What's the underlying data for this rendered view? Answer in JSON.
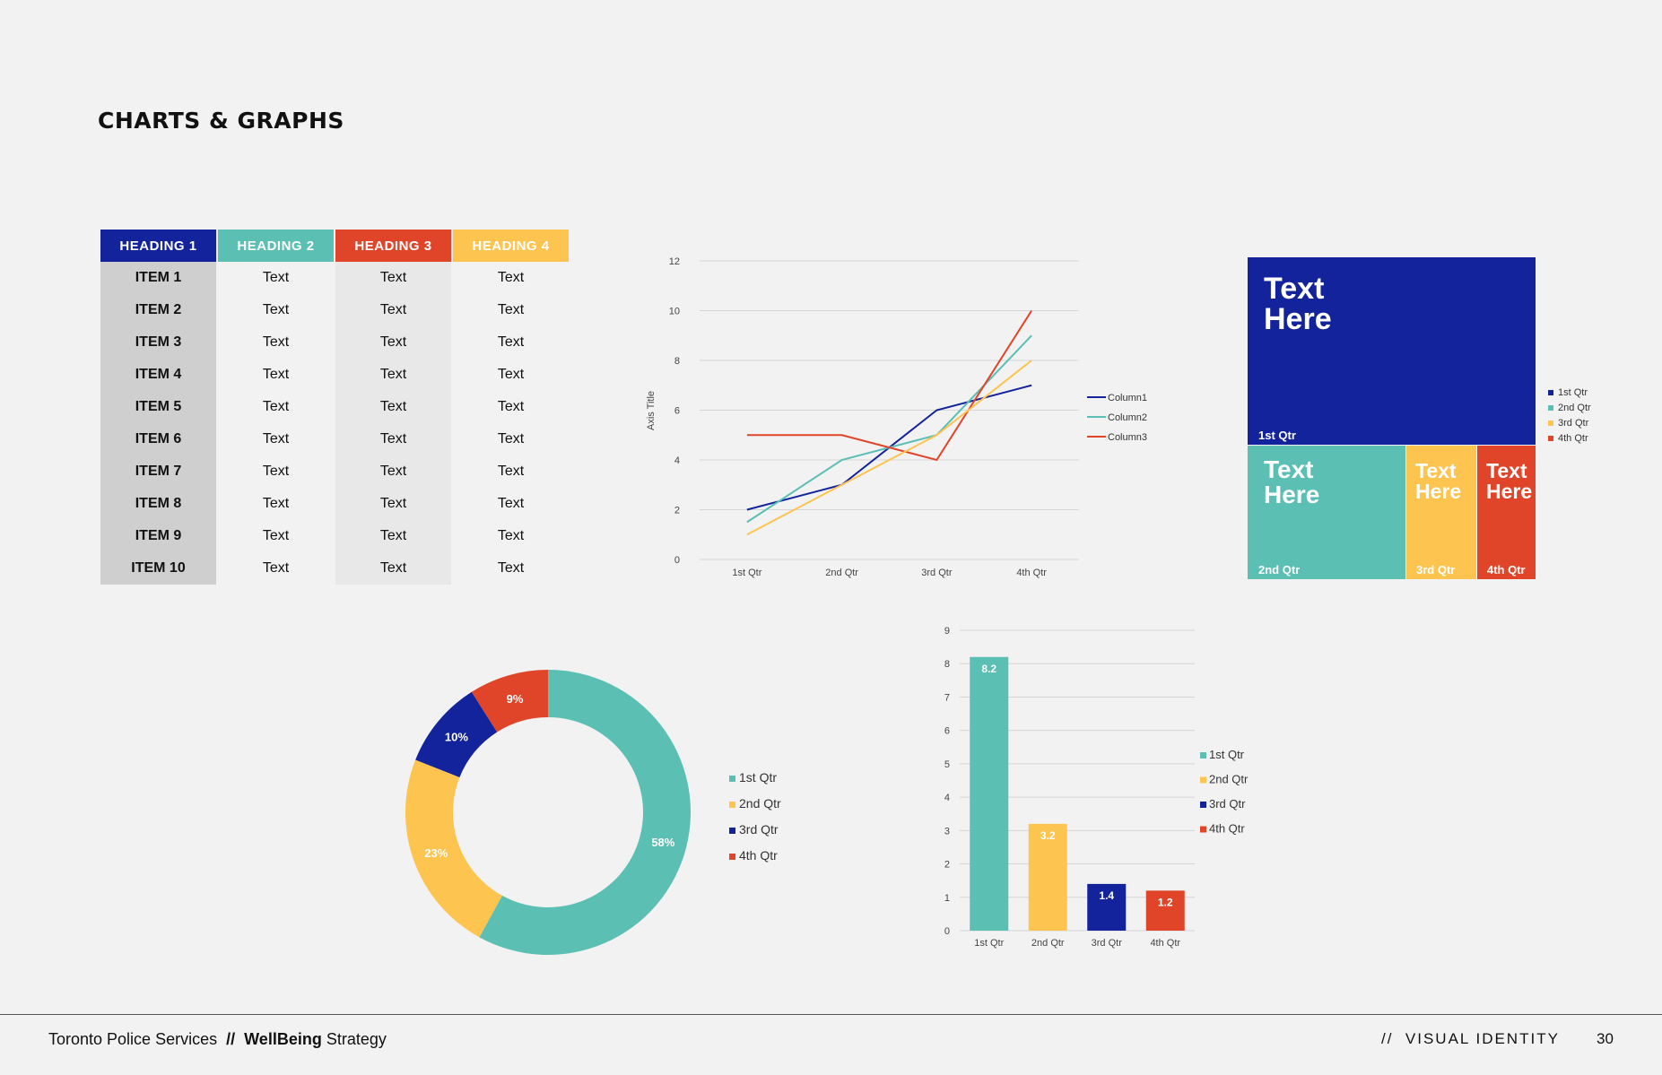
{
  "page": {
    "title": "CHARTS & GRAPHS",
    "footer": {
      "org": "Toronto Police Services",
      "separator": "//",
      "project_bold": "WellBeing",
      "project_rest": "Strategy",
      "section_sep": "//",
      "section": "VISUAL IDENTITY",
      "page_number": "30"
    }
  },
  "colors": {
    "navy": "#13239b",
    "teal": "#5bbfb3",
    "red": "#e0452a",
    "yellow": "#fdc44f"
  },
  "table": {
    "headers": [
      "HEADING 1",
      "HEADING 2",
      "HEADING 3",
      "HEADING 4"
    ],
    "header_colors": [
      "#13239b",
      "#5bbfb3",
      "#e0452a",
      "#fdc44f"
    ],
    "rows": [
      [
        "ITEM 1",
        "Text",
        "Text",
        "Text"
      ],
      [
        "ITEM 2",
        "Text",
        "Text",
        "Text"
      ],
      [
        "ITEM 3",
        "Text",
        "Text",
        "Text"
      ],
      [
        "ITEM 4",
        "Text",
        "Text",
        "Text"
      ],
      [
        "ITEM 5",
        "Text",
        "Text",
        "Text"
      ],
      [
        "ITEM 6",
        "Text",
        "Text",
        "Text"
      ],
      [
        "ITEM 7",
        "Text",
        "Text",
        "Text"
      ],
      [
        "ITEM 8",
        "Text",
        "Text",
        "Text"
      ],
      [
        "ITEM 9",
        "Text",
        "Text",
        "Text"
      ],
      [
        "ITEM 10",
        "Text",
        "Text",
        "Text"
      ]
    ]
  },
  "chart_data": [
    {
      "type": "line",
      "categories": [
        "1st Qtr",
        "2nd Qtr",
        "3rd Qtr",
        "4th Qtr"
      ],
      "series": [
        {
          "name": "Column1",
          "values": [
            2,
            3,
            6,
            7
          ],
          "color": "#13239b"
        },
        {
          "name": "Column2",
          "values": [
            1.5,
            4,
            5,
            9
          ],
          "color": "#5bbfb3"
        },
        {
          "name": "Column3",
          "values": [
            5,
            5,
            4,
            10
          ],
          "color": "#e0452a"
        },
        {
          "name": "",
          "values": [
            1,
            3,
            5,
            8
          ],
          "color": "#fdc44f"
        }
      ],
      "ylabel": "Axis Title",
      "ylim": [
        0,
        12
      ],
      "yticks": [
        "0",
        "2",
        "4",
        "6",
        "8",
        "10",
        "12"
      ],
      "grid": true,
      "legend": "right"
    },
    {
      "type": "treemap",
      "items": [
        {
          "label": "1st Qtr",
          "text": "Text Here",
          "color": "#13239b"
        },
        {
          "label": "2nd Qtr",
          "text": "Text Here",
          "color": "#5bbfb3"
        },
        {
          "label": "3rd Qtr",
          "text": "Text Here",
          "color": "#fdc44f"
        },
        {
          "label": "4th Qtr",
          "text": "Text Here",
          "color": "#e0452a"
        }
      ],
      "legend": [
        "1st Qtr",
        "2nd Qtr",
        "3rd Qtr",
        "4th Qtr"
      ],
      "legend_placement": "right"
    },
    {
      "type": "pie",
      "donut": true,
      "slices": [
        {
          "label": "1st Qtr",
          "value": 58,
          "text": "58%",
          "color": "#5bbfb3"
        },
        {
          "label": "2nd Qtr",
          "value": 23,
          "text": "23%",
          "color": "#fdc44f"
        },
        {
          "label": "3rd Qtr",
          "value": 10,
          "text": "10%",
          "color": "#13239b"
        },
        {
          "label": "4th Qtr",
          "value": 9,
          "text": "9%",
          "color": "#e0452a"
        }
      ],
      "legend": "right"
    },
    {
      "type": "bar",
      "categories": [
        "1st Qtr",
        "2nd Qtr",
        "3rd Qtr",
        "4th Qtr"
      ],
      "values": [
        8.2,
        3.2,
        1.4,
        1.2
      ],
      "value_labels": [
        "8.2",
        "3.2",
        "1.4",
        "1.2"
      ],
      "colors": [
        "#5bbfb3",
        "#fdc44f",
        "#13239b",
        "#e0452a"
      ],
      "ylim": [
        0,
        9
      ],
      "yticks": [
        "0",
        "1",
        "2",
        "3",
        "4",
        "5",
        "6",
        "7",
        "8",
        "9"
      ],
      "grid": true,
      "legend": "right"
    }
  ]
}
